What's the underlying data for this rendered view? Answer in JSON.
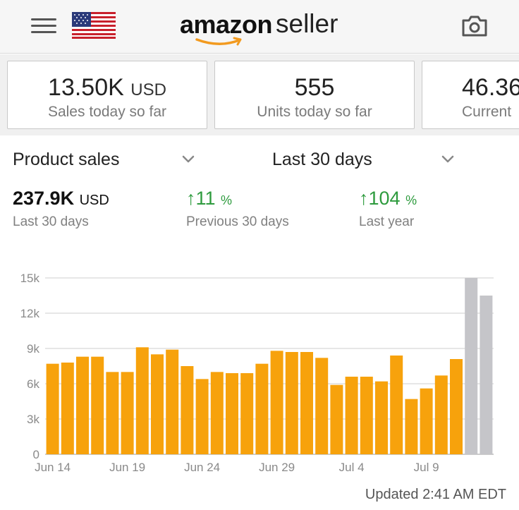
{
  "header": {
    "menu_icon": "hamburger-menu-icon",
    "flag_icon": "us-flag-icon",
    "logo_word_1": "amazon",
    "logo_word_2": "seller",
    "camera_icon": "camera-icon"
  },
  "cards": [
    {
      "value": "13.50K",
      "unit": "USD",
      "label": "Sales today so far"
    },
    {
      "value": "555",
      "unit": "",
      "label": "Units today so far"
    },
    {
      "value": "46.36",
      "unit": "",
      "label": "Current"
    }
  ],
  "selectors": {
    "metric": "Product sales",
    "range": "Last 30 days"
  },
  "stats": {
    "total_value": "237.9K",
    "total_unit": "USD",
    "total_label": "Last 30 days",
    "prev_arrow": "↑",
    "prev_value": "11",
    "prev_pct": "%",
    "prev_label": "Previous 30 days",
    "year_arrow": "↑",
    "year_value": "104",
    "year_pct": "%",
    "year_label": "Last year"
  },
  "chart_data": {
    "type": "bar",
    "categories": [
      "Jun 14",
      "Jun 15",
      "Jun 16",
      "Jun 17",
      "Jun 18",
      "Jun 19",
      "Jun 20",
      "Jun 21",
      "Jun 22",
      "Jun 23",
      "Jun 24",
      "Jun 25",
      "Jun 26",
      "Jun 27",
      "Jun 28",
      "Jun 29",
      "Jun 30",
      "Jul 1",
      "Jul 2",
      "Jul 3",
      "Jul 4",
      "Jul 5",
      "Jul 6",
      "Jul 7",
      "Jul 8",
      "Jul 9",
      "Jul 10",
      "Jul 11",
      "Jul 12",
      "Jul 13",
      "Jul 14"
    ],
    "values": [
      7700,
      7800,
      8300,
      8300,
      7000,
      7000,
      9100,
      8500,
      8900,
      7500,
      6400,
      7000,
      6900,
      6900,
      7700,
      8800,
      8700,
      8700,
      8200,
      5900,
      6600,
      6600,
      6200,
      8400,
      4700,
      5600,
      6700,
      8100,
      15000,
      13500,
      null
    ],
    "highlight_colors": [
      "#f7a20c",
      "#c5c5c9"
    ],
    "gray_from_index": 28,
    "x_tick_labels": [
      "Jun 14",
      "Jun 19",
      "Jun 24",
      "Jun 29",
      "Jul 4",
      "Jul 9"
    ],
    "y_ticks": [
      0,
      3000,
      6000,
      9000,
      12000,
      15000
    ],
    "y_tick_labels": [
      "0",
      "3k",
      "6k",
      "9k",
      "12k",
      "15k"
    ],
    "ylim": [
      0,
      15000
    ],
    "grid": true,
    "bar_color": "#f7a20c",
    "future_bar_color": "#c5c5c9"
  },
  "footer": {
    "updated": "Updated 2:41 AM EDT"
  }
}
